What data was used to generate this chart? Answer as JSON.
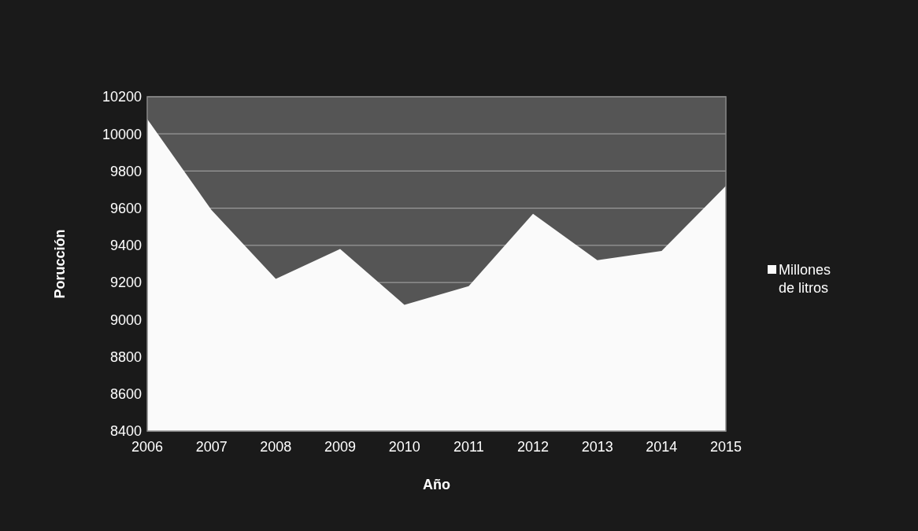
{
  "chart_data": {
    "type": "area",
    "xlabel": "Año",
    "ylabel": "Porucción",
    "categories": [
      "2006",
      "2007",
      "2008",
      "2009",
      "2010",
      "2011",
      "2012",
      "2013",
      "2014",
      "2015"
    ],
    "series": [
      {
        "name": "Millones de litros",
        "color": "#fafafa",
        "values": [
          10080,
          9590,
          9220,
          9380,
          9080,
          9180,
          9570,
          9320,
          9370,
          9720
        ]
      }
    ],
    "ylim": [
      8400,
      10200
    ],
    "yticks": [
      8400,
      8600,
      8800,
      9000,
      9200,
      9400,
      9600,
      9800,
      10000,
      10200
    ],
    "grid": "y",
    "legend": "right"
  }
}
